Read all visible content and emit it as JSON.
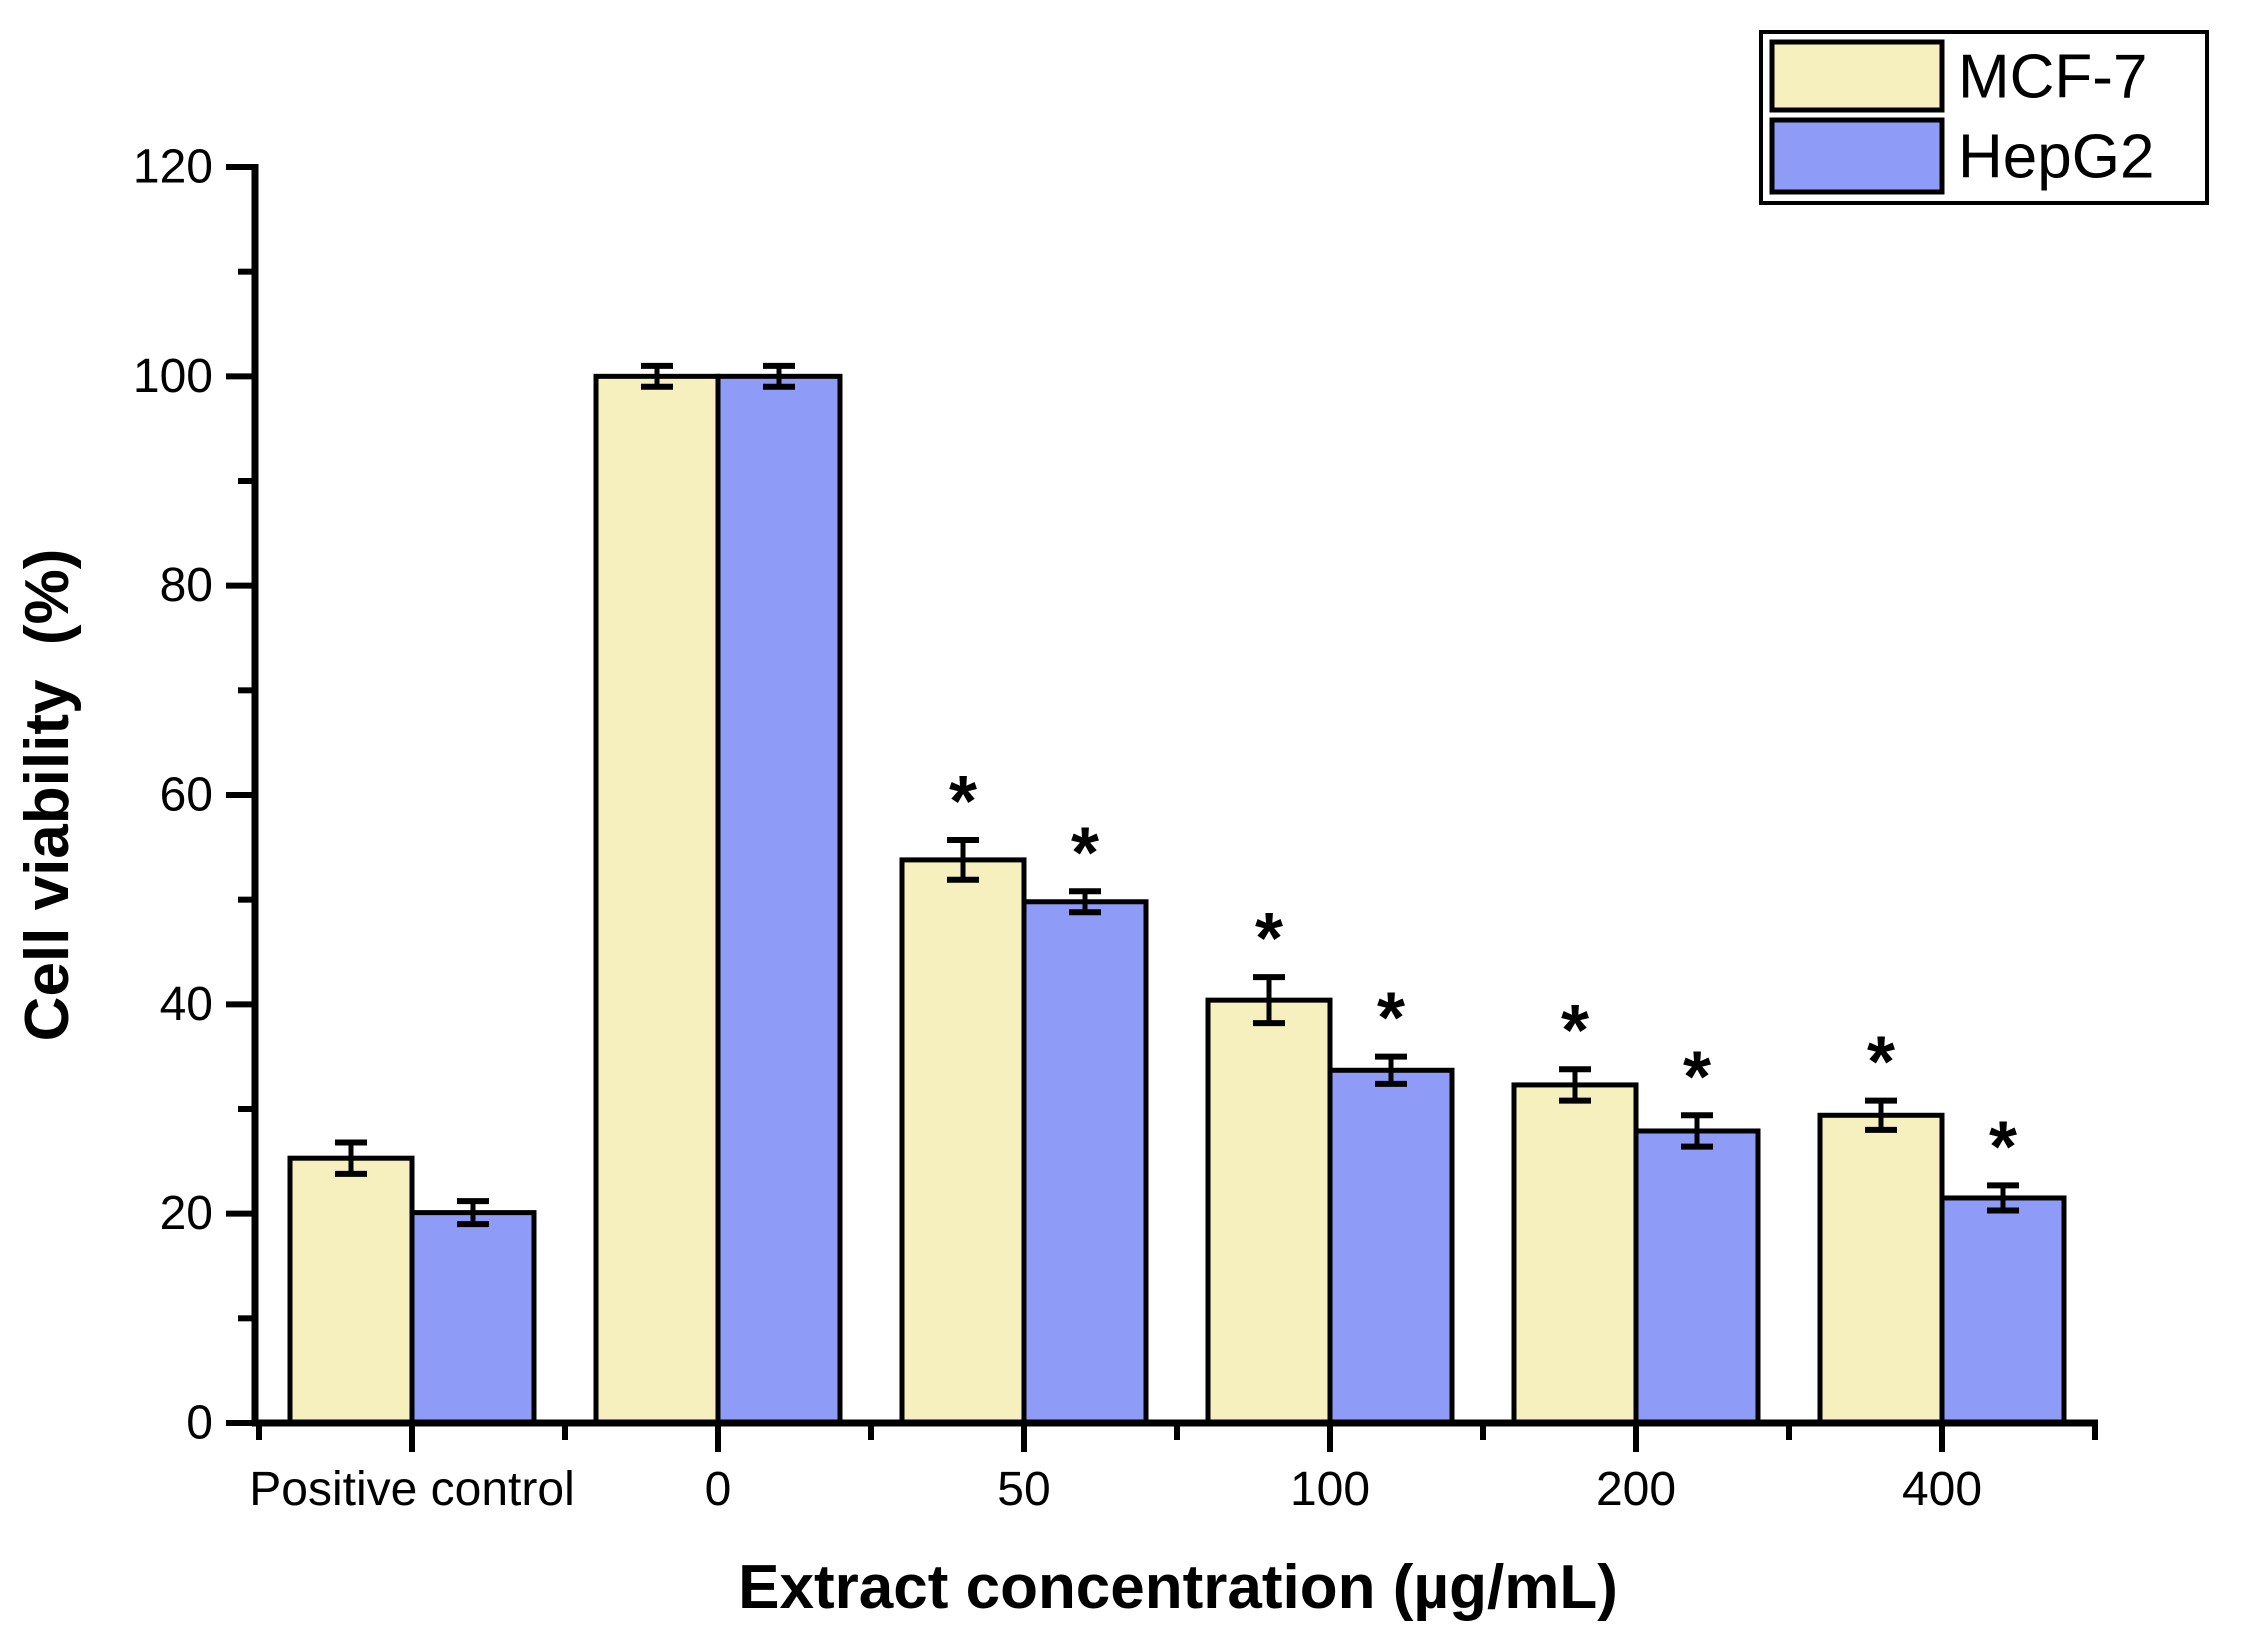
{
  "figure": {
    "background_color": "#FFFFFF",
    "axis_color": "#000000",
    "significance_marker": "*"
  },
  "chart_data": {
    "type": "bar",
    "title": "",
    "xlabel": "Extract concentration (µg/mL)",
    "ylabel": "Cell viability  (%)",
    "categories": [
      "Positive control",
      "0",
      "50",
      "100",
      "200",
      "400"
    ],
    "series": [
      {
        "name": "MCF-7",
        "color": "#F5F0BE",
        "values": [
          25.3,
          100.0,
          53.8,
          40.4,
          32.3,
          29.4
        ],
        "errors": [
          1.5,
          1.0,
          1.9,
          2.2,
          1.5,
          1.4
        ],
        "significant": [
          false,
          false,
          true,
          true,
          true,
          true
        ]
      },
      {
        "name": "HepG2",
        "color": "#8E9BF7",
        "values": [
          20.1,
          100.0,
          49.8,
          33.7,
          27.9,
          21.5
        ],
        "errors": [
          1.1,
          1.0,
          1.0,
          1.3,
          1.5,
          1.2
        ],
        "significant": [
          false,
          false,
          true,
          true,
          true,
          true
        ]
      }
    ],
    "ylim": [
      0,
      120
    ],
    "ytick_labels": [
      "0",
      "20",
      "40",
      "60",
      "80",
      "100",
      "120"
    ],
    "ytick_step": 20,
    "yminor_step": 10,
    "grid": false,
    "error_bars": "plus-minus with caps",
    "bar_outline_color": "#000000",
    "legend_position": "top-right"
  },
  "legend": {
    "entries": [
      {
        "label": "MCF-7",
        "color": "#F5F0BE"
      },
      {
        "label": "HepG2",
        "color": "#8E9BF7"
      }
    ]
  }
}
